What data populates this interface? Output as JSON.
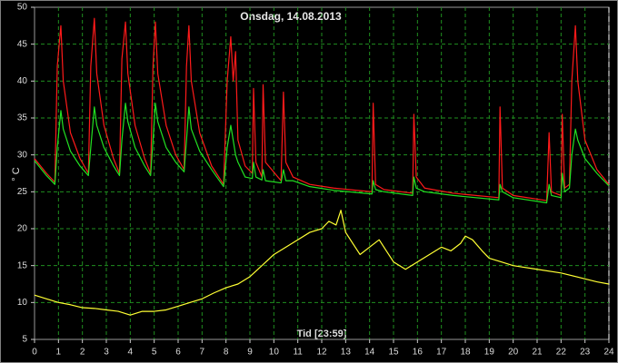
{
  "chart_data": {
    "type": "line",
    "title": "Onsdag, 14.08.2013",
    "ylabel": "° C",
    "xlabel": "Tid [23:59]",
    "xlim": [
      0,
      24
    ],
    "ylim": [
      5,
      50
    ],
    "xticks": [
      0,
      1,
      2,
      3,
      4,
      5,
      6,
      7,
      8,
      9,
      10,
      11,
      12,
      13,
      14,
      15,
      16,
      17,
      18,
      19,
      20,
      21,
      22,
      23,
      24
    ],
    "yticks": [
      5,
      10,
      15,
      20,
      25,
      30,
      35,
      40,
      45,
      50
    ],
    "grid": true,
    "grid_color": "#1f8f1f",
    "series": [
      {
        "color": "#ff1a1a",
        "x": [
          0,
          0.5,
          0.85,
          0.95,
          1.1,
          1.2,
          1.5,
          1.9,
          2.25,
          2.35,
          2.5,
          2.6,
          2.9,
          3.3,
          3.55,
          3.65,
          3.8,
          3.9,
          4.2,
          4.6,
          4.85,
          4.95,
          5.05,
          5.15,
          5.5,
          5.9,
          6.25,
          6.35,
          6.45,
          6.55,
          6.9,
          7.4,
          7.9,
          8.05,
          8.2,
          8.3,
          8.4,
          8.5,
          8.8,
          9.1,
          9.15,
          9.25,
          9.5,
          9.55,
          9.65,
          10.3,
          10.4,
          10.5,
          10.8,
          11.5,
          12.5,
          14.1,
          14.15,
          14.25,
          14.6,
          15.8,
          15.85,
          15.95,
          16.3,
          17.5,
          19.4,
          19.45,
          19.55,
          20,
          21.4,
          21.5,
          21.6,
          22.0,
          22.05,
          22.15,
          22.35,
          22.45,
          22.6,
          22.7,
          23,
          23.5,
          24
        ],
        "values": [
          29.5,
          27.5,
          26.3,
          42,
          47.5,
          40,
          33,
          29.5,
          27.5,
          42,
          48.5,
          41,
          34,
          29.5,
          27.5,
          43,
          48,
          41,
          34,
          29.5,
          27.5,
          42,
          48,
          41,
          34,
          30,
          28,
          42,
          47.5,
          40,
          33,
          28.5,
          26,
          40,
          46,
          40,
          44,
          32,
          28.5,
          27.5,
          39,
          29,
          27,
          39.5,
          29,
          26.5,
          38.5,
          29,
          27,
          26,
          25.5,
          25,
          37,
          26,
          25.3,
          24.8,
          35.5,
          27,
          25.5,
          24.8,
          24.2,
          36.5,
          25.5,
          24.5,
          23.8,
          33,
          25,
          24.5,
          35.5,
          25.5,
          26,
          40,
          47.5,
          40,
          32,
          28,
          26
        ]
      },
      {
        "color": "#22e022",
        "x": [
          0,
          0.5,
          0.85,
          0.95,
          1.1,
          1.2,
          1.5,
          1.9,
          2.25,
          2.35,
          2.5,
          2.6,
          2.9,
          3.3,
          3.55,
          3.65,
          3.8,
          3.9,
          4.2,
          4.6,
          4.85,
          4.95,
          5.05,
          5.15,
          5.5,
          5.9,
          6.25,
          6.35,
          6.45,
          6.55,
          6.9,
          7.4,
          7.9,
          8.05,
          8.2,
          8.3,
          8.4,
          8.5,
          8.8,
          9.1,
          9.15,
          9.25,
          9.5,
          9.55,
          9.65,
          10.3,
          10.4,
          10.5,
          10.8,
          11.5,
          12.5,
          14.1,
          14.15,
          14.25,
          14.6,
          15.8,
          15.85,
          15.95,
          16.3,
          17.5,
          19.4,
          19.45,
          19.55,
          20,
          21.4,
          21.5,
          21.6,
          22.0,
          22.05,
          22.15,
          22.35,
          22.45,
          22.6,
          22.7,
          23,
          23.5,
          24
        ],
        "values": [
          29.2,
          27.2,
          26.0,
          31,
          36,
          33.5,
          30.5,
          28.5,
          27.2,
          31,
          36.5,
          34,
          31,
          28.5,
          27.2,
          32,
          37,
          34.5,
          31,
          28.5,
          27.2,
          32,
          37,
          34.5,
          31,
          29,
          27.7,
          32,
          36.5,
          33.5,
          30.5,
          28,
          25.7,
          31,
          34,
          32,
          30,
          29,
          27,
          26.8,
          29,
          27,
          26.6,
          28,
          26.5,
          26.2,
          28,
          26.5,
          26.5,
          25.7,
          25.2,
          24.7,
          26.5,
          25.3,
          25,
          24.5,
          27,
          25.5,
          25,
          24.5,
          23.9,
          26,
          25,
          24.2,
          23.5,
          26,
          24.5,
          24.2,
          27.5,
          25,
          25.5,
          30,
          33.5,
          32,
          29.5,
          27.5,
          25.8
        ]
      },
      {
        "color": "#ffff33",
        "x": [
          0,
          0.5,
          1,
          1.5,
          2,
          2.5,
          3,
          3.5,
          4,
          4.5,
          5,
          5.5,
          6,
          6.5,
          7,
          7.5,
          8,
          8.5,
          9,
          9.5,
          10,
          10.5,
          11,
          11.5,
          12,
          12.3,
          12.6,
          12.8,
          13,
          13.3,
          13.6,
          14,
          14.4,
          14.7,
          15,
          15.5,
          16,
          16.5,
          17,
          17.4,
          17.8,
          18,
          18.3,
          18.7,
          19,
          19.5,
          20,
          21,
          22,
          23,
          23.5,
          24
        ],
        "values": [
          11,
          10.5,
          10,
          9.7,
          9.3,
          9.2,
          9,
          8.8,
          8.3,
          8.8,
          8.8,
          9,
          9.5,
          10,
          10.5,
          11.3,
          12,
          12.5,
          13.5,
          15,
          16.5,
          17.5,
          18.5,
          19.5,
          20,
          21,
          20.5,
          22.5,
          19.5,
          18,
          16.5,
          17.5,
          18.5,
          17,
          15.5,
          14.5,
          15.5,
          16.5,
          17.5,
          17,
          18,
          19,
          18.5,
          17,
          16,
          15.5,
          15,
          14.5,
          14,
          13.2,
          12.8,
          12.5
        ]
      }
    ]
  }
}
